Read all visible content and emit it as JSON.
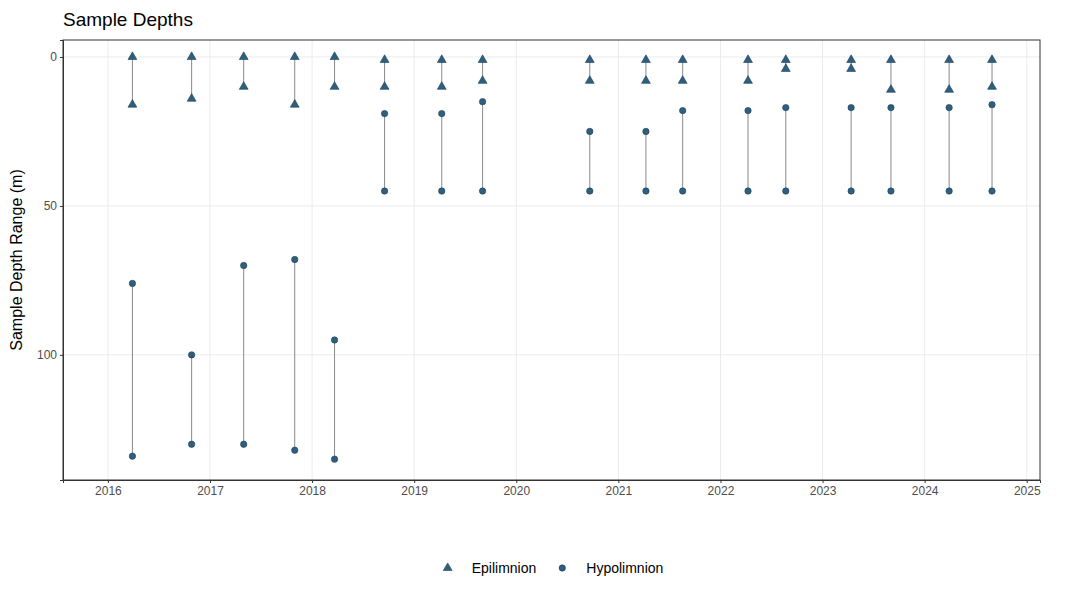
{
  "chart_data": {
    "type": "range",
    "title": "Sample Depths",
    "y_label": "Sample Depth Range (m)",
    "x": [
      2016.24,
      2016.82,
      2017.33,
      2017.83,
      2018.22,
      2018.71,
      2019.27,
      2019.67,
      2020.72,
      2021.27,
      2021.63,
      2022.27,
      2022.64,
      2023.28,
      2023.67,
      2024.24,
      2024.66
    ],
    "series": [
      {
        "name": "Epilimnion",
        "color": "#2e5f7e",
        "marker": "triangle",
        "values": [
          [
            0,
            16
          ],
          [
            0,
            14
          ],
          [
            0,
            10
          ],
          [
            0,
            16
          ],
          [
            0,
            10
          ],
          [
            1,
            10
          ],
          [
            1,
            10
          ],
          [
            1,
            8
          ],
          [
            1,
            8
          ],
          [
            1,
            8
          ],
          [
            1,
            8
          ],
          [
            1,
            8
          ],
          [
            1,
            4
          ],
          [
            1,
            4
          ],
          [
            1,
            11
          ],
          [
            1,
            11
          ],
          [
            1,
            10
          ]
        ]
      },
      {
        "name": "Hypolimnion",
        "color": "#2e5f7e",
        "marker": "circle",
        "values": [
          [
            76,
            134
          ],
          [
            100,
            130
          ],
          [
            70,
            130
          ],
          [
            68,
            132
          ],
          [
            95,
            135
          ],
          [
            19,
            45
          ],
          [
            19,
            45
          ],
          [
            15,
            45
          ],
          [
            25,
            45
          ],
          [
            25,
            45
          ],
          [
            18,
            45
          ],
          [
            18,
            45
          ],
          [
            17,
            45
          ],
          [
            17,
            45
          ],
          [
            17,
            45
          ],
          [
            17,
            45
          ],
          [
            16,
            45
          ]
        ]
      }
    ],
    "xlim": [
      2015.56,
      2025.13
    ],
    "xticks": [
      2016,
      2017,
      2018,
      2019,
      2020,
      2021,
      2022,
      2023,
      2024,
      2025
    ],
    "ylim": [
      142,
      -5.7
    ],
    "yticks": [
      0,
      50,
      100
    ],
    "grid": true,
    "legend": "bottom"
  }
}
